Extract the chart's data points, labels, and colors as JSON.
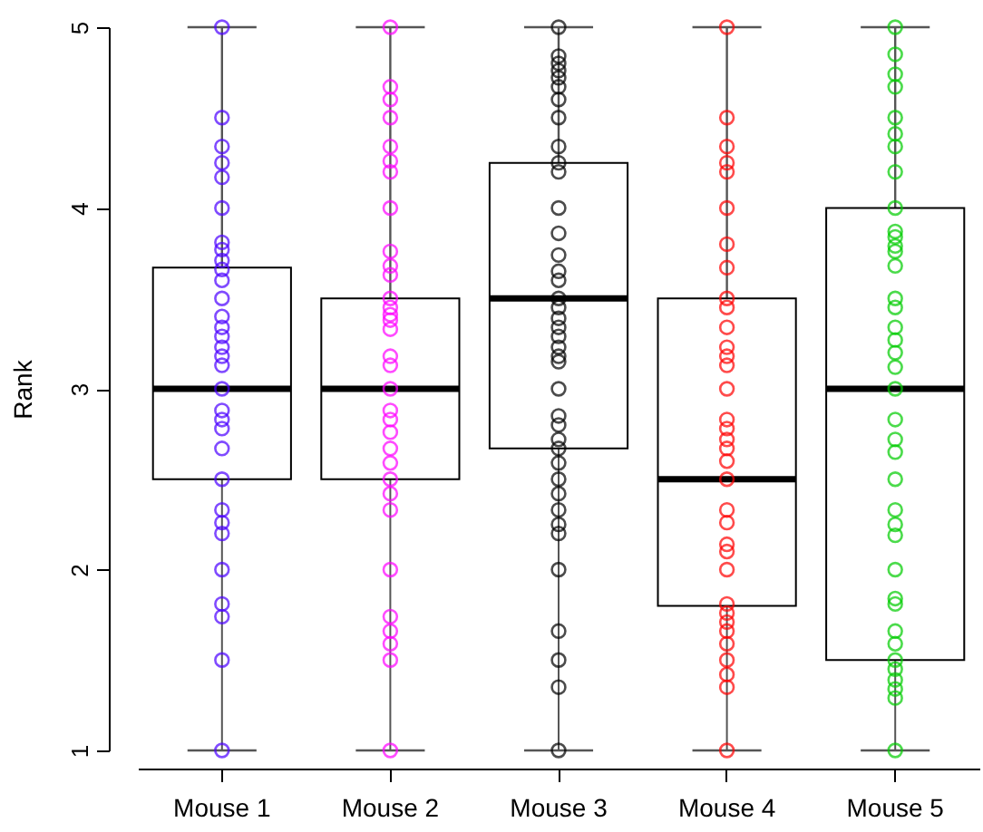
{
  "chart_data": {
    "type": "box",
    "ylabel": "Rank",
    "categories": [
      "Mouse 1",
      "Mouse 2",
      "Mouse 3",
      "Mouse 4",
      "Mouse 5"
    ],
    "ylim": [
      1,
      5
    ],
    "yticks": [
      1,
      2,
      3,
      4,
      5
    ],
    "boxes": [
      {
        "low": 1,
        "q1": 2.5,
        "median": 3,
        "q3": 3.67,
        "high": 5
      },
      {
        "low": 1,
        "q1": 2.5,
        "median": 3,
        "q3": 3.5,
        "high": 5
      },
      {
        "low": 1,
        "q1": 2.67,
        "median": 3.5,
        "q3": 4.25,
        "high": 5
      },
      {
        "low": 1,
        "q1": 1.8,
        "median": 2.5,
        "q3": 3.5,
        "high": 5
      },
      {
        "low": 1,
        "q1": 1.5,
        "median": 3,
        "q3": 4,
        "high": 5
      }
    ],
    "series": [
      {
        "type": "scatter",
        "marker": "circle",
        "color": "#4b00ff",
        "x": [
          "Mouse 1",
          "Mouse 1",
          "Mouse 1",
          "Mouse 1",
          "Mouse 1",
          "Mouse 1",
          "Mouse 1",
          "Mouse 1",
          "Mouse 1",
          "Mouse 1",
          "Mouse 1",
          "Mouse 1",
          "Mouse 1",
          "Mouse 1",
          "Mouse 1",
          "Mouse 1",
          "Mouse 1",
          "Mouse 1",
          "Mouse 1",
          "Mouse 1",
          "Mouse 1",
          "Mouse 1",
          "Mouse 1",
          "Mouse 1",
          "Mouse 1",
          "Mouse 1",
          "Mouse 1",
          "Mouse 1",
          "Mouse 1",
          "Mouse 1",
          "Mouse 1",
          "Mouse 1"
        ],
        "values": [
          5,
          4.5,
          4.34,
          4.25,
          4.17,
          4,
          3.81,
          3.77,
          3.71,
          3.66,
          3.6,
          3.5,
          3.4,
          3.34,
          3.29,
          3.23,
          3.18,
          3.13,
          3,
          2.88,
          2.83,
          2.78,
          2.67,
          2.5,
          2.33,
          2.26,
          2.2,
          2,
          1.81,
          1.74,
          1.5,
          1
        ]
      },
      {
        "type": "scatter",
        "marker": "circle",
        "color": "#ff00ff",
        "x": [
          "Mouse 2",
          "Mouse 2",
          "Mouse 2",
          "Mouse 2",
          "Mouse 2",
          "Mouse 2",
          "Mouse 2",
          "Mouse 2",
          "Mouse 2",
          "Mouse 2",
          "Mouse 2",
          "Mouse 2",
          "Mouse 2",
          "Mouse 2",
          "Mouse 2",
          "Mouse 2",
          "Mouse 2",
          "Mouse 2",
          "Mouse 2",
          "Mouse 2",
          "Mouse 2",
          "Mouse 2",
          "Mouse 2",
          "Mouse 2",
          "Mouse 2",
          "Mouse 2",
          "Mouse 2",
          "Mouse 2",
          "Mouse 2",
          "Mouse 2",
          "Mouse 2",
          "Mouse 2",
          "Mouse 2"
        ],
        "values": [
          5,
          4.67,
          4.6,
          4.5,
          4.34,
          4.26,
          4.2,
          4,
          3.76,
          3.68,
          3.63,
          3.5,
          3.45,
          3.41,
          3.38,
          3.33,
          3.18,
          3.13,
          3,
          2.88,
          2.83,
          2.76,
          2.67,
          2.59,
          2.5,
          2.42,
          2.33,
          2,
          1.74,
          1.66,
          1.59,
          1.5,
          1
        ]
      },
      {
        "type": "scatter",
        "marker": "circle",
        "color": "#000000",
        "x": [
          "Mouse 3",
          "Mouse 3",
          "Mouse 3",
          "Mouse 3",
          "Mouse 3",
          "Mouse 3",
          "Mouse 3",
          "Mouse 3",
          "Mouse 3",
          "Mouse 3",
          "Mouse 3",
          "Mouse 3",
          "Mouse 3",
          "Mouse 3",
          "Mouse 3",
          "Mouse 3",
          "Mouse 3",
          "Mouse 3",
          "Mouse 3",
          "Mouse 3",
          "Mouse 3",
          "Mouse 3",
          "Mouse 3",
          "Mouse 3",
          "Mouse 3",
          "Mouse 3",
          "Mouse 3",
          "Mouse 3",
          "Mouse 3",
          "Mouse 3",
          "Mouse 3",
          "Mouse 3",
          "Mouse 3",
          "Mouse 3",
          "Mouse 3",
          "Mouse 3",
          "Mouse 3",
          "Mouse 3",
          "Mouse 3",
          "Mouse 3"
        ],
        "values": [
          5,
          4.84,
          4.8,
          4.76,
          4.72,
          4.67,
          4.6,
          4.5,
          4.34,
          4.25,
          4.2,
          4,
          3.86,
          3.74,
          3.65,
          3.6,
          3.5,
          3.45,
          3.39,
          3.34,
          3.29,
          3.23,
          3.18,
          3.15,
          3,
          2.85,
          2.8,
          2.72,
          2.67,
          2.59,
          2.5,
          2.42,
          2.33,
          2.25,
          2.2,
          2,
          1.66,
          1.5,
          1.35,
          1
        ]
      },
      {
        "type": "scatter",
        "marker": "circle",
        "color": "#ff0000",
        "x": [
          "Mouse 4",
          "Mouse 4",
          "Mouse 4",
          "Mouse 4",
          "Mouse 4",
          "Mouse 4",
          "Mouse 4",
          "Mouse 4",
          "Mouse 4",
          "Mouse 4",
          "Mouse 4",
          "Mouse 4",
          "Mouse 4",
          "Mouse 4",
          "Mouse 4",
          "Mouse 4",
          "Mouse 4",
          "Mouse 4",
          "Mouse 4",
          "Mouse 4",
          "Mouse 4",
          "Mouse 4",
          "Mouse 4",
          "Mouse 4",
          "Mouse 4",
          "Mouse 4",
          "Mouse 4",
          "Mouse 4",
          "Mouse 4",
          "Mouse 4",
          "Mouse 4",
          "Mouse 4",
          "Mouse 4",
          "Mouse 4",
          "Mouse 4"
        ],
        "values": [
          5,
          4.5,
          4.34,
          4.25,
          4.2,
          4,
          3.8,
          3.67,
          3.5,
          3.45,
          3.34,
          3.23,
          3.18,
          3.13,
          3,
          2.83,
          2.78,
          2.72,
          2.67,
          2.6,
          2.5,
          2.33,
          2.26,
          2.14,
          2.1,
          2,
          1.81,
          1.76,
          1.71,
          1.66,
          1.59,
          1.5,
          1.42,
          1.35,
          1
        ]
      },
      {
        "type": "scatter",
        "marker": "circle",
        "color": "#00cc00",
        "x": [
          "Mouse 5",
          "Mouse 5",
          "Mouse 5",
          "Mouse 5",
          "Mouse 5",
          "Mouse 5",
          "Mouse 5",
          "Mouse 5",
          "Mouse 5",
          "Mouse 5",
          "Mouse 5",
          "Mouse 5",
          "Mouse 5",
          "Mouse 5",
          "Mouse 5",
          "Mouse 5",
          "Mouse 5",
          "Mouse 5",
          "Mouse 5",
          "Mouse 5",
          "Mouse 5",
          "Mouse 5",
          "Mouse 5",
          "Mouse 5",
          "Mouse 5",
          "Mouse 5",
          "Mouse 5",
          "Mouse 5",
          "Mouse 5",
          "Mouse 5",
          "Mouse 5",
          "Mouse 5",
          "Mouse 5",
          "Mouse 5",
          "Mouse 5",
          "Mouse 5",
          "Mouse 5",
          "Mouse 5",
          "Mouse 5"
        ],
        "values": [
          5,
          4.85,
          4.74,
          4.67,
          4.5,
          4.41,
          4.34,
          4.2,
          4,
          3.87,
          3.84,
          3.79,
          3.76,
          3.68,
          3.5,
          3.45,
          3.34,
          3.27,
          3.2,
          3.12,
          3,
          2.83,
          2.72,
          2.65,
          2.5,
          2.33,
          2.25,
          2.19,
          2,
          1.84,
          1.81,
          1.66,
          1.59,
          1.5,
          1.45,
          1.39,
          1.34,
          1.29,
          1
        ]
      }
    ]
  }
}
